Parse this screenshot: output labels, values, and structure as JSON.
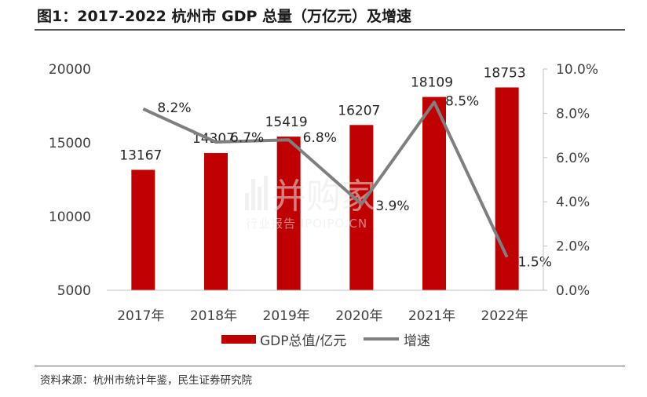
{
  "header": {
    "title": "图1：2017-2022 杭州市 GDP 总量（万亿元）及增速"
  },
  "footer": {
    "source": "资料来源：杭州市统计年鉴，民生证券研究院"
  },
  "watermark": {
    "brand": "并购家",
    "subtitle": "行业报告 IPOIPO.CN"
  },
  "chart_data": {
    "type": "bar",
    "categories": [
      "2017年",
      "2018年",
      "2019年",
      "2020年",
      "2021年",
      "2022年"
    ],
    "series": [
      {
        "name": "GDP总值/亿元",
        "type": "bar",
        "axis": "left",
        "color": "#c00000",
        "values": [
          13167,
          14307,
          15419,
          16207,
          18109,
          18753
        ],
        "labels": [
          "13167",
          "14307",
          "15419",
          "16207",
          "18109",
          "18753"
        ]
      },
      {
        "name": "增速",
        "type": "line",
        "axis": "right",
        "color": "#7f7f7f",
        "values": [
          8.2,
          6.7,
          6.8,
          3.9,
          8.5,
          1.5
        ],
        "labels": [
          "8.2%",
          "6.7%",
          "6.8%",
          "3.9%",
          "8.5%",
          "1.5%"
        ]
      }
    ],
    "left_axis": {
      "range": [
        5000,
        20000
      ],
      "ticks": [
        5000,
        10000,
        15000,
        20000
      ],
      "tick_labels": [
        "5000",
        "10000",
        "15000",
        "20000"
      ]
    },
    "right_axis": {
      "range": [
        0,
        10
      ],
      "ticks": [
        0,
        2,
        4,
        6,
        8,
        10
      ],
      "tick_labels": [
        "0.0%",
        "2.0%",
        "4.0%",
        "6.0%",
        "8.0%",
        "10.0%"
      ]
    },
    "grid": false,
    "legend_position": "bottom"
  }
}
